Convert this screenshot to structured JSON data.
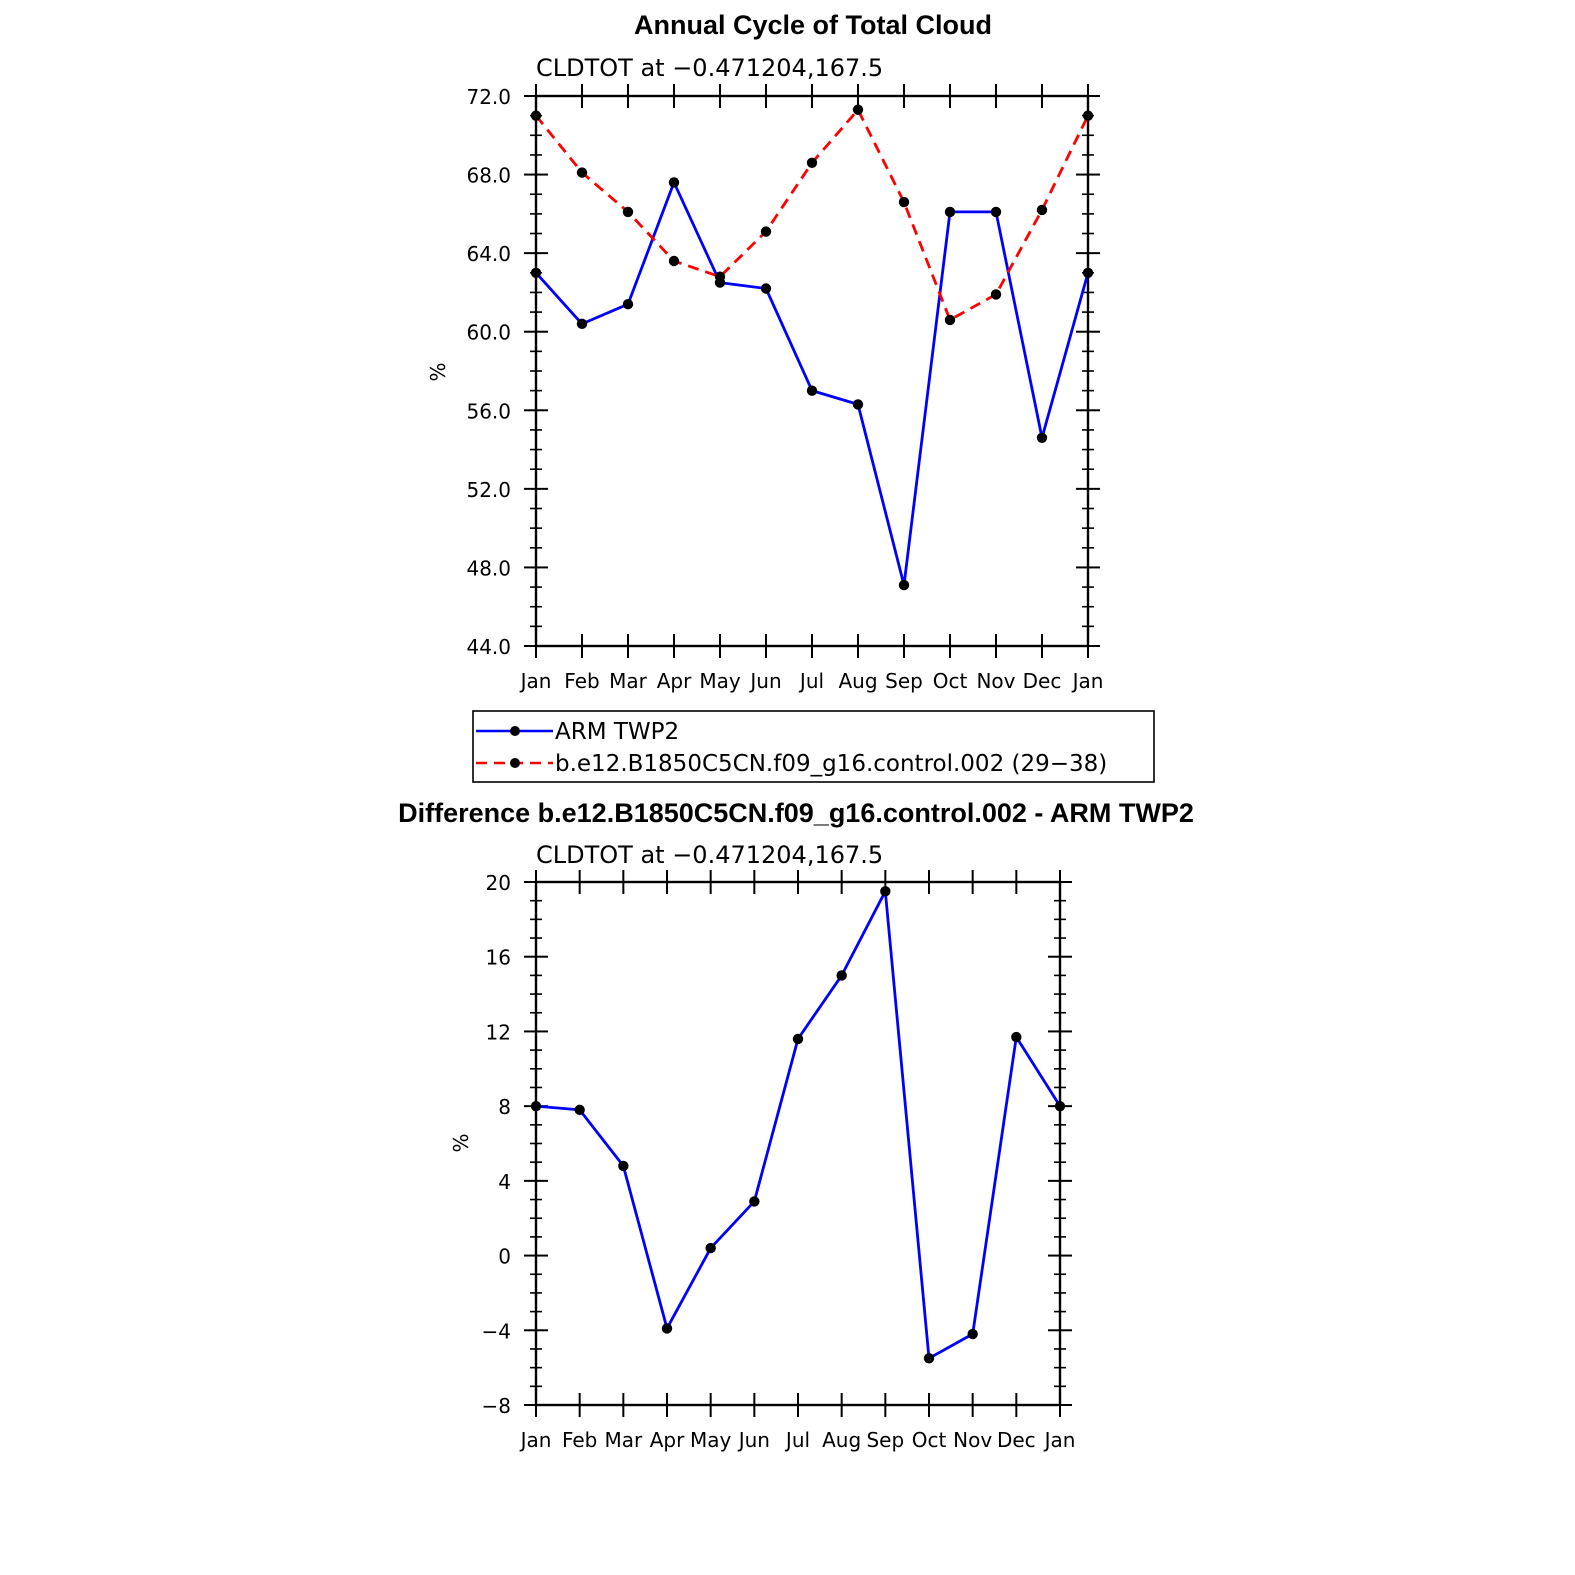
{
  "chart_data": [
    {
      "type": "line",
      "title": "Annual Cycle of Total Cloud",
      "subtitle": "CLDTOT at −0.471204,167.5",
      "ylabel": "%",
      "xlabel": "",
      "categories": [
        "Jan",
        "Feb",
        "Mar",
        "Apr",
        "May",
        "Jun",
        "Jul",
        "Aug",
        "Sep",
        "Oct",
        "Nov",
        "Dec",
        "Jan"
      ],
      "ylim": [
        44.0,
        72.0
      ],
      "yticks": [
        "44.0",
        "48.0",
        "52.0",
        "56.0",
        "60.0",
        "64.0",
        "68.0",
        "72.0"
      ],
      "series": [
        {
          "name": "ARM TWP2",
          "color": "#0000ff",
          "dash": "solid",
          "values": [
            63.0,
            60.4,
            61.4,
            67.6,
            62.5,
            62.2,
            57.0,
            56.3,
            47.1,
            66.1,
            66.1,
            54.6,
            63.0
          ]
        },
        {
          "name": "b.e12.B1850C5CN.f09_g16.control.002 (29−38)",
          "color": "#ff0000",
          "dash": "dashed",
          "values": [
            71.0,
            68.1,
            66.1,
            63.6,
            62.8,
            65.1,
            68.6,
            71.3,
            66.6,
            60.6,
            61.9,
            66.2,
            71.0
          ]
        }
      ],
      "legend_position": "below"
    },
    {
      "type": "line",
      "title": "Difference b.e12.B1850C5CN.f09_g16.control.002 - ARM TWP2",
      "subtitle": "CLDTOT at −0.471204,167.5",
      "ylabel": "%",
      "xlabel": "",
      "categories": [
        "Jan",
        "Feb",
        "Mar",
        "Apr",
        "May",
        "Jun",
        "Jul",
        "Aug",
        "Sep",
        "Oct",
        "Nov",
        "Dec",
        "Jan"
      ],
      "ylim": [
        -8,
        20
      ],
      "yticks": [
        "−8",
        "−4",
        "0",
        "4",
        "8",
        "12",
        "16",
        "20"
      ],
      "series": [
        {
          "name": "Difference",
          "color": "#0000ff",
          "dash": "solid",
          "values": [
            8.0,
            7.8,
            4.8,
            -3.9,
            0.4,
            2.9,
            11.6,
            15.0,
            19.5,
            -5.5,
            -4.2,
            11.7,
            8.0
          ]
        }
      ]
    }
  ]
}
